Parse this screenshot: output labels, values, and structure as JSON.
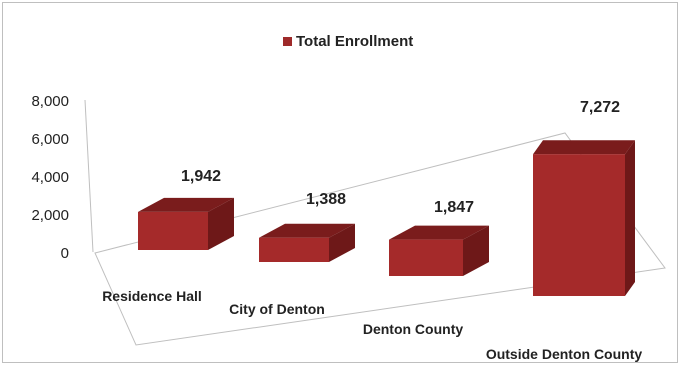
{
  "chart_data": {
    "type": "bar",
    "categories": [
      "Residence Hall",
      "City of Denton",
      "Denton County",
      "Outside Denton County"
    ],
    "series": [
      {
        "name": "Total Enrollment",
        "values": [
          1942,
          1388,
          1847,
          7272
        ]
      }
    ],
    "data_labels": [
      "1,942",
      "1,388",
      "1,847",
      "7,272"
    ],
    "y_ticks": [
      "0",
      "2,000",
      "4,000",
      "6,000",
      "8,000"
    ],
    "ylim": [
      0,
      8000
    ],
    "title": "",
    "xlabel": "",
    "ylabel": "",
    "legend": {
      "label": "Total Enrollment",
      "position": "top"
    },
    "grid": false,
    "style": "3d",
    "colors": {
      "bar_front": "#a52a2a",
      "bar_top": "#7a1c1c",
      "bar_side": "#6e1818",
      "axis": "#bfbfbf"
    }
  }
}
